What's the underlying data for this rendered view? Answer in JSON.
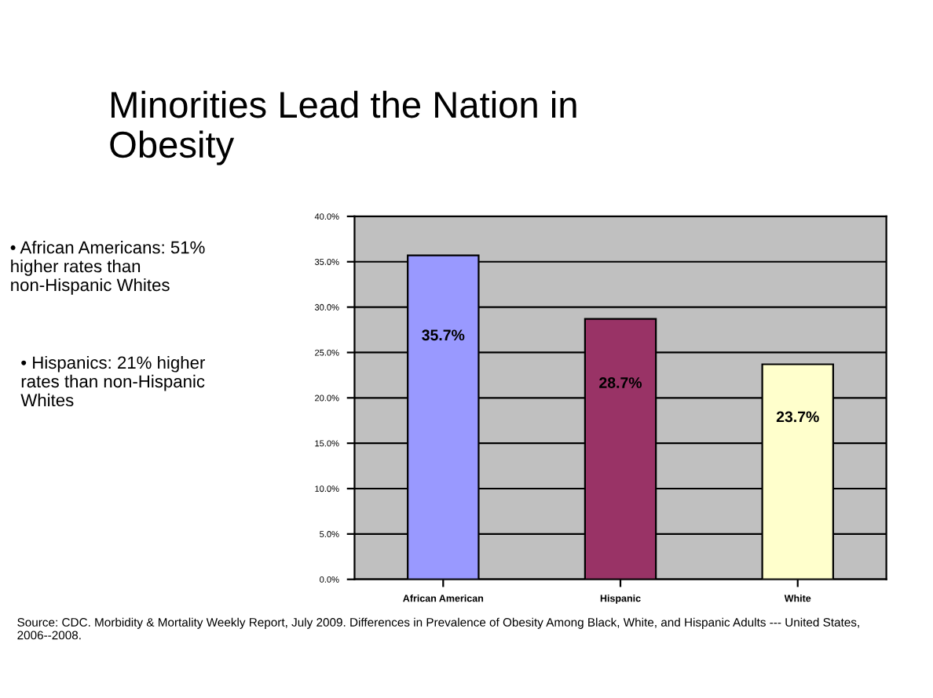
{
  "chart_data": {
    "type": "bar",
    "title": "Minorities Lead the Nation in Obesity",
    "categories": [
      "African American",
      "Hispanic",
      "White"
    ],
    "values": [
      35.7,
      28.7,
      23.7
    ],
    "colors": [
      "#9999ff",
      "#993366",
      "#ffffcc"
    ],
    "value_labels": [
      "35.7%",
      "28.7%",
      "23.7%"
    ],
    "ylim": [
      0,
      40
    ],
    "yticks": [
      {
        "value": 0,
        "label": "0.0%"
      },
      {
        "value": 5,
        "label": "5.0%"
      },
      {
        "value": 10,
        "label": "10.0%"
      },
      {
        "value": 15,
        "label": "15.0%"
      },
      {
        "value": 20,
        "label": "20.0%"
      },
      {
        "value": 25,
        "label": "25.0%"
      },
      {
        "value": 30,
        "label": "30.0%"
      },
      {
        "value": 35,
        "label": "35.0%"
      },
      {
        "value": 40,
        "label": "40.0%"
      }
    ],
    "grid": "y",
    "annotations": [
      "• African Americans: 51% higher rates than non-Hispanic Whites",
      "• Hispanics: 21% higher rates than non-Hispanic Whites",
      "Source: CDC. Morbidity & Mortality Weekly Report, July 2009. Differences in Prevalence of Obesity Among Black, White, and Hispanic Adults --- United States, 2006--2008."
    ]
  }
}
